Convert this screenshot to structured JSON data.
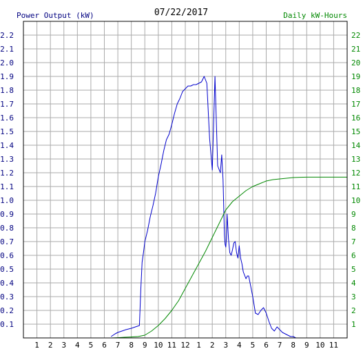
{
  "chart_data": {
    "type": "line",
    "title": "07/22/2017",
    "left_axis_label": "Power Output (kW)",
    "right_axis_label": "Daily kW-Hours",
    "x_tick_labels": [
      "1",
      "2",
      "3",
      "4",
      "5",
      "6",
      "7",
      "8",
      "9",
      "10",
      "11",
      "12",
      "1",
      "2",
      "3",
      "4",
      "5",
      "6",
      "7",
      "8",
      "9",
      "10",
      "11"
    ],
    "x_range_hours": [
      0,
      24
    ],
    "y_left_range": [
      0,
      2.3
    ],
    "y_left_ticks": [
      "0.1",
      "0.2",
      "0.3",
      "0.4",
      "0.5",
      "0.6",
      "0.7",
      "0.8",
      "0.9",
      "1.0",
      "1.1",
      "1.2",
      "1.3",
      "1.4",
      "1.5",
      "1.6",
      "1.7",
      "1.8",
      "1.9",
      "2.0",
      "2.1",
      "2.2"
    ],
    "y_right_range": [
      0,
      23
    ],
    "y_right_ticks": [
      "1",
      "2",
      "3",
      "4",
      "5",
      "6",
      "7",
      "8",
      "9",
      "10",
      "11",
      "12",
      "13",
      "14",
      "15",
      "16",
      "17",
      "18",
      "19",
      "20",
      "21",
      "22"
    ],
    "grid": true,
    "colors": {
      "power": "#0000cc",
      "energy": "#008800",
      "grid": "#aaaaaa",
      "left_axis_text": "#000080",
      "right_axis_text": "#008800",
      "frame": "#000000"
    },
    "series": [
      {
        "name": "Power Output (kW)",
        "axis": "left",
        "x": [
          6.5,
          6.8,
          7.0,
          7.3,
          7.6,
          8.0,
          8.3,
          8.6,
          8.7,
          8.8,
          8.9,
          9.0,
          9.2,
          9.4,
          9.6,
          9.8,
          10.0,
          10.2,
          10.4,
          10.6,
          10.8,
          11.0,
          11.2,
          11.4,
          11.6,
          11.8,
          12.0,
          12.2,
          12.4,
          12.6,
          12.8,
          13.0,
          13.2,
          13.4,
          13.6,
          13.8,
          14.0,
          14.2,
          14.4,
          14.6,
          14.7,
          14.8,
          14.85,
          14.9,
          14.95,
          15.0,
          15.05,
          15.1,
          15.2,
          15.3,
          15.4,
          15.5,
          15.6,
          15.7,
          15.8,
          15.9,
          16.0,
          16.1,
          16.2,
          16.3,
          16.5,
          16.6,
          16.7,
          16.8,
          16.9,
          17.0,
          17.1,
          17.2,
          17.4,
          17.6,
          17.8,
          18.0,
          18.2,
          18.4,
          18.6,
          18.8,
          19.0,
          19.2,
          19.4,
          19.6,
          19.8,
          20.0,
          20.2,
          20.4,
          20.6,
          20.8,
          21.0,
          21.3,
          21.6
        ],
        "values": [
          0.01,
          0.03,
          0.04,
          0.05,
          0.06,
          0.07,
          0.08,
          0.09,
          0.35,
          0.55,
          0.62,
          0.7,
          0.78,
          0.88,
          0.96,
          1.05,
          1.17,
          1.26,
          1.36,
          1.44,
          1.48,
          1.55,
          1.63,
          1.7,
          1.74,
          1.79,
          1.81,
          1.83,
          1.83,
          1.84,
          1.84,
          1.85,
          1.86,
          1.9,
          1.85,
          1.45,
          1.22,
          1.9,
          1.25,
          1.2,
          1.33,
          1.15,
          0.95,
          0.75,
          0.68,
          0.66,
          0.72,
          0.9,
          0.72,
          0.62,
          0.6,
          0.64,
          0.69,
          0.7,
          0.62,
          0.58,
          0.67,
          0.58,
          0.54,
          0.48,
          0.43,
          0.45,
          0.45,
          0.4,
          0.35,
          0.3,
          0.24,
          0.18,
          0.17,
          0.2,
          0.22,
          0.18,
          0.12,
          0.07,
          0.05,
          0.08,
          0.06,
          0.04,
          0.03,
          0.02,
          0.01,
          0.01,
          0.0,
          0.0,
          0.0,
          0.0,
          0.0,
          0.0,
          0.0
        ]
      },
      {
        "name": "Daily kW-Hours",
        "axis": "right",
        "x": [
          6.5,
          7.0,
          7.5,
          8.0,
          8.5,
          9.0,
          9.5,
          10.0,
          10.5,
          11.0,
          11.5,
          12.0,
          12.5,
          13.0,
          13.5,
          14.0,
          14.5,
          15.0,
          15.5,
          16.0,
          16.5,
          17.0,
          17.5,
          18.0,
          18.5,
          19.0,
          19.5,
          20.0,
          20.5,
          21.0,
          21.5,
          22.0,
          22.5,
          23.0,
          23.5,
          24.0
        ],
        "values": [
          0.0,
          0.02,
          0.05,
          0.07,
          0.1,
          0.2,
          0.5,
          0.9,
          1.4,
          2.0,
          2.7,
          3.6,
          4.5,
          5.4,
          6.3,
          7.3,
          8.3,
          9.3,
          9.9,
          10.3,
          10.7,
          11.0,
          11.2,
          11.4,
          11.5,
          11.55,
          11.6,
          11.65,
          11.67,
          11.68,
          11.68,
          11.68,
          11.68,
          11.68,
          11.68,
          11.68
        ]
      }
    ]
  }
}
